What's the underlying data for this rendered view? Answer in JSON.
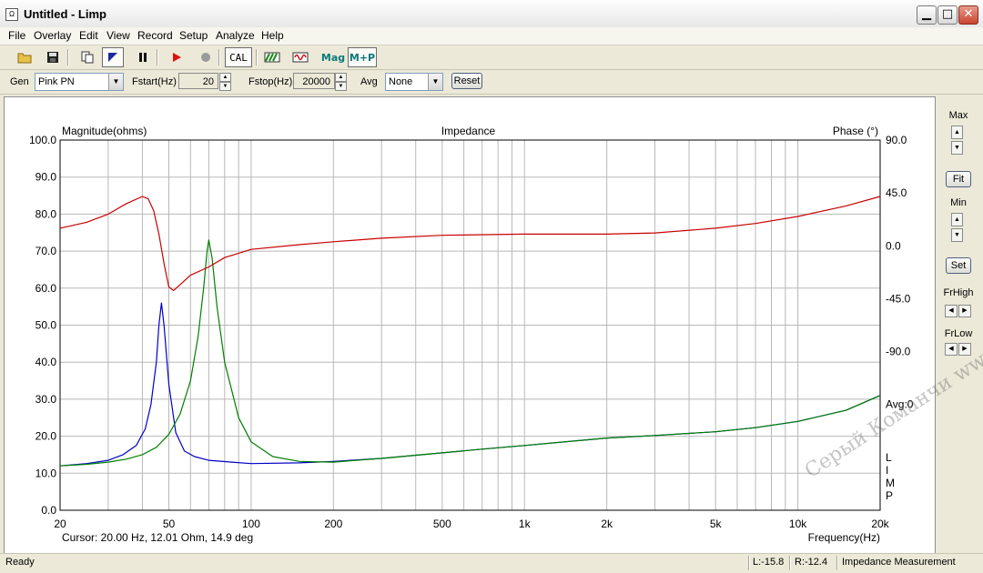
{
  "window": {
    "title": "Untitled - Limp",
    "icon": "limp-app-icon"
  },
  "menu": [
    "File",
    "Overlay",
    "Edit",
    "View",
    "Record",
    "Setup",
    "Analyze",
    "Help"
  ],
  "toolbar": {
    "cal_label": "CAL",
    "mag_label": "Mag",
    "mp_label": "M+P"
  },
  "genbar": {
    "gen_label": "Gen",
    "gen_value": "Pink PN",
    "fstart_label": "Fstart(Hz)",
    "fstart_value": "20",
    "fstop_label": "Fstop(Hz)",
    "fstop_value": "20000",
    "avg_label": "Avg",
    "avg_value": "None",
    "reset_label": "Reset"
  },
  "chart_data": {
    "type": "line",
    "title": "Impedance",
    "ylabel": "Magnitude(ohms)",
    "y2label": "Phase (°)",
    "xlabel": "Frequency(Hz)",
    "x_scale": "log",
    "xlim": [
      20,
      20000
    ],
    "ylim": [
      0,
      100
    ],
    "y2lim": [
      -225,
      90
    ],
    "x_ticks": [
      20,
      50,
      100,
      200,
      500,
      1000,
      2000,
      5000,
      10000,
      20000
    ],
    "x_tick_labels": [
      "20",
      "50",
      "100",
      "200",
      "500",
      "1k",
      "2k",
      "5k",
      "10k",
      "20k"
    ],
    "y_ticks": [
      "0.0",
      "10.0",
      "20.0",
      "30.0",
      "40.0",
      "50.0",
      "60.0",
      "70.0",
      "80.0",
      "90.0",
      "100.0"
    ],
    "y2_ticks": [
      "90.0",
      "45.0",
      "0.0",
      "-45.0",
      "-90.0"
    ],
    "avg_text": "Avg:0",
    "side_letters": [
      "L",
      "I",
      "M",
      "P"
    ],
    "cursor_text": "Cursor: 20.00 Hz, 12.01 Ohm, 14.9 deg",
    "grid": true,
    "series": [
      {
        "color": "#0000c8",
        "x": [
          20,
          25,
          30,
          34,
          38,
          41,
          43,
          45,
          46,
          47,
          48,
          50,
          53,
          57,
          62,
          70,
          85,
          100,
          150,
          200,
          300,
          500,
          700,
          1000,
          2000,
          3000,
          5000,
          7000,
          10000,
          15000,
          20000
        ],
        "values": [
          12.0,
          12.6,
          13.5,
          15.0,
          17.5,
          22.0,
          28.5,
          40.0,
          50.0,
          56.0,
          50.0,
          34.0,
          21.0,
          16.0,
          14.5,
          13.5,
          13.0,
          12.6,
          12.8,
          13.2,
          14.0,
          15.5,
          16.5,
          17.5,
          19.5,
          20.2,
          21.2,
          22.3,
          24.0,
          27.0,
          31.0
        ]
      },
      {
        "color": "#008000",
        "x": [
          20,
          25,
          30,
          35,
          40,
          45,
          50,
          55,
          60,
          64,
          67,
          69,
          70,
          72,
          75,
          80,
          90,
          100,
          120,
          150,
          200,
          300,
          500,
          700,
          1000,
          2000,
          3000,
          5000,
          7000,
          10000,
          15000,
          20000
        ],
        "values": [
          12.0,
          12.4,
          13.0,
          13.8,
          15.0,
          17.0,
          20.5,
          26.0,
          35.0,
          47.0,
          60.0,
          70.0,
          73.0,
          68.0,
          55.0,
          40.0,
          25.0,
          18.5,
          14.5,
          13.2,
          13.0,
          14.0,
          15.5,
          16.5,
          17.5,
          19.5,
          20.2,
          21.2,
          22.3,
          24.0,
          27.0,
          31.0
        ]
      },
      {
        "color": "#c80000",
        "axis": "phase",
        "x": [
          20,
          25,
          30,
          35,
          40,
          42,
          44,
          46,
          48,
          50,
          52,
          55,
          60,
          70,
          80,
          100,
          150,
          200,
          300,
          500,
          1000,
          2000,
          3000,
          5000,
          7000,
          10000,
          15000,
          20000
        ],
        "values": [
          15.0,
          20.0,
          27.0,
          36.0,
          42.0,
          40.0,
          30.0,
          10.0,
          -15.0,
          -35.0,
          -38.0,
          -33.0,
          -25.0,
          -18.0,
          -10.0,
          -3.0,
          1.0,
          3.5,
          6.5,
          9.0,
          10.0,
          10.0,
          11.0,
          15.0,
          19.0,
          25.0,
          34.0,
          42.0
        ]
      }
    ]
  },
  "right_panel": {
    "max_label": "Max",
    "fit_label": "Fit",
    "min_label": "Min",
    "set_label": "Set",
    "frhigh_label": "FrHigh",
    "frlow_label": "FrLow"
  },
  "watermark": "Серый Команчи www.exo.hy",
  "status": {
    "ready": "Ready",
    "left_level": "L:-15.8",
    "right_level": "R:-12.4",
    "mode": "Impedance Measurement"
  }
}
